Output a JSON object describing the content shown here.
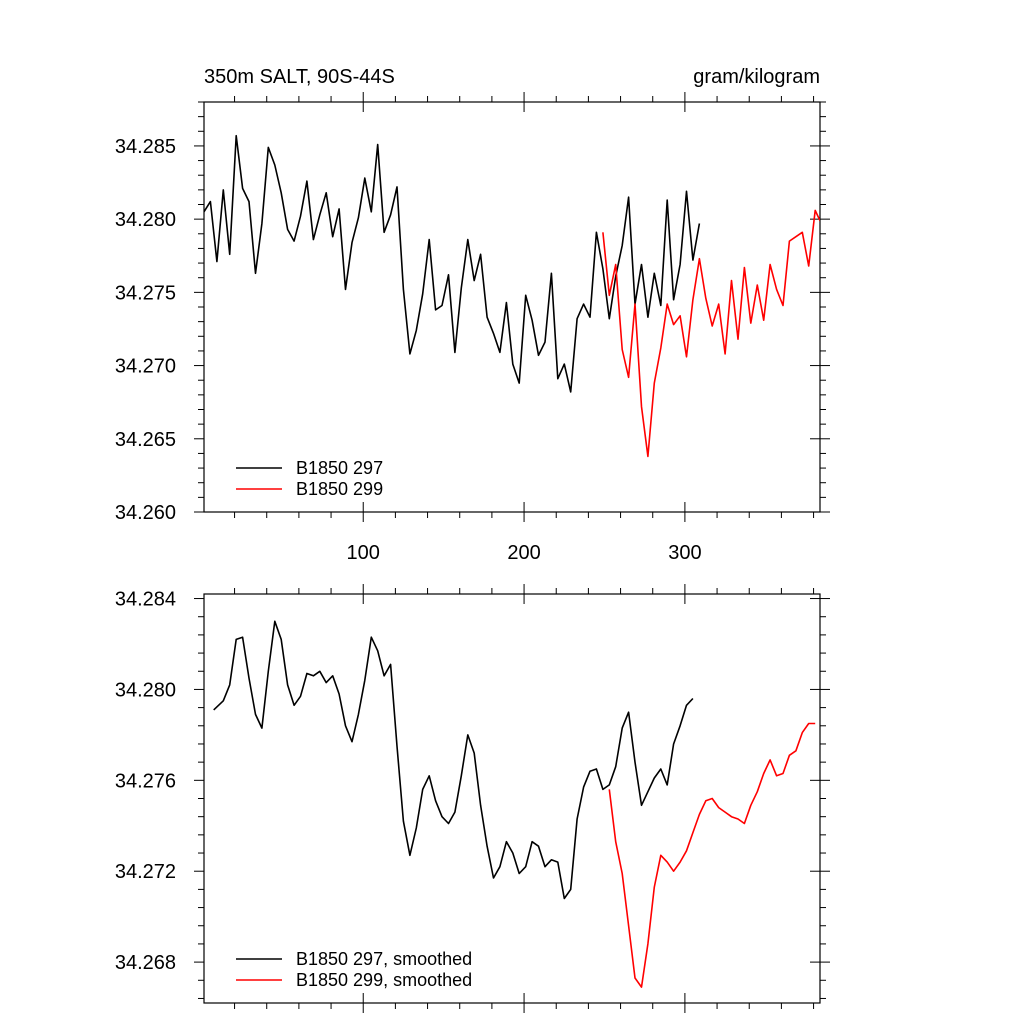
{
  "chart_data": [
    {
      "type": "line",
      "title_left": "350m SALT, 90S-44S",
      "title_right": "gram/kilogram",
      "xlim": [
        1,
        384
      ],
      "ylim": [
        34.26,
        34.288
      ],
      "xticks": [
        100,
        200,
        300
      ],
      "xtick_labels": [
        "100",
        "200",
        "300"
      ],
      "yticks": [
        34.26,
        34.265,
        34.27,
        34.275,
        34.28,
        34.285
      ],
      "ytick_labels": [
        "34.260",
        "34.265",
        "34.270",
        "34.275",
        "34.280",
        "34.285"
      ],
      "series": [
        {
          "name": "B1850 297",
          "color": "#000000",
          "x": [
            1,
            5,
            9,
            13,
            17,
            21,
            25,
            29,
            33,
            37,
            41,
            45,
            49,
            53,
            57,
            61,
            65,
            69,
            73,
            77,
            81,
            85,
            89,
            93,
            97,
            101,
            105,
            109,
            113,
            117,
            121,
            125,
            129,
            133,
            137,
            141,
            145,
            149,
            153,
            157,
            161,
            165,
            169,
            173,
            177,
            181,
            185,
            189,
            193,
            197,
            201,
            205,
            209,
            213,
            217,
            221,
            225,
            229,
            233,
            237,
            241,
            245,
            249,
            253,
            257,
            261,
            265,
            269,
            273,
            277,
            281,
            285,
            289,
            293,
            297,
            301,
            305,
            309
          ],
          "values": [
            34.2805,
            34.2812,
            34.2771,
            34.282,
            34.2776,
            34.2857,
            34.2821,
            34.2812,
            34.2763,
            34.2797,
            34.2849,
            34.2837,
            34.2818,
            34.2793,
            34.2785,
            34.2802,
            34.2826,
            34.2786,
            34.2803,
            34.2818,
            34.2788,
            34.2807,
            34.2752,
            34.2784,
            34.2801,
            34.2828,
            34.2805,
            34.2851,
            34.2791,
            34.2803,
            34.2822,
            34.2752,
            34.2708,
            34.2724,
            34.2749,
            34.2786,
            34.2738,
            34.2741,
            34.2762,
            34.2709,
            34.2753,
            34.2786,
            34.2758,
            34.2776,
            34.2733,
            34.2722,
            34.2709,
            34.2743,
            34.2701,
            34.2688,
            34.2748,
            34.2731,
            34.2707,
            34.2716,
            34.2763,
            34.2691,
            34.2701,
            34.2682,
            34.2732,
            34.2742,
            34.2733,
            34.2791,
            34.2766,
            34.2732,
            34.2761,
            34.2782,
            34.2815,
            34.2742,
            34.2769,
            34.2733,
            34.2763,
            34.2741,
            34.2813,
            34.2745,
            34.2769,
            34.2819,
            34.2772,
            34.2797
          ]
        },
        {
          "name": "B1850 299",
          "color": "#ff0000",
          "x": [
            249,
            253,
            257,
            261,
            265,
            269,
            273,
            277,
            281,
            285,
            289,
            293,
            297,
            301,
            305,
            309,
            313,
            317,
            321,
            325,
            329,
            333,
            337,
            341,
            345,
            349,
            353,
            357,
            361,
            365,
            369,
            373,
            377,
            381,
            384
          ],
          "values": [
            34.2791,
            34.2748,
            34.2769,
            34.2711,
            34.2692,
            34.2742,
            34.2672,
            34.2638,
            34.2688,
            34.2712,
            34.2742,
            34.2728,
            34.2734,
            34.2706,
            34.2745,
            34.2773,
            34.2746,
            34.2727,
            34.2742,
            34.2708,
            34.2758,
            34.2718,
            34.2767,
            34.2729,
            34.2755,
            34.2731,
            34.2769,
            34.2752,
            34.2741,
            34.2785,
            34.2788,
            34.2791,
            34.2768,
            34.2806,
            34.2799
          ]
        }
      ],
      "legend": [
        "B1850 297",
        "B1850 299"
      ],
      "legend_position": "bottom-left"
    },
    {
      "type": "line",
      "xlim": [
        1,
        384
      ],
      "ylim": [
        34.2662,
        34.2842
      ],
      "xticks": [
        100,
        200,
        300
      ],
      "yticks": [
        34.268,
        34.272,
        34.276,
        34.28,
        34.284
      ],
      "ytick_labels": [
        "34.268",
        "34.272",
        "34.276",
        "34.280",
        "34.284"
      ],
      "series": [
        {
          "name": "B1850 297, smoothed",
          "color": "#000000",
          "x": [
            7,
            13,
            17,
            21,
            25,
            29,
            33,
            37,
            41,
            45,
            49,
            53,
            57,
            61,
            65,
            69,
            73,
            77,
            81,
            85,
            89,
            93,
            97,
            101,
            105,
            109,
            113,
            117,
            121,
            125,
            129,
            133,
            137,
            141,
            145,
            149,
            153,
            157,
            161,
            165,
            169,
            173,
            177,
            181,
            185,
            189,
            193,
            197,
            201,
            205,
            209,
            213,
            217,
            221,
            225,
            229,
            233,
            237,
            241,
            245,
            249,
            253,
            257,
            261,
            265,
            269,
            273,
            277,
            281,
            285,
            289,
            293,
            297,
            301,
            305
          ],
          "values": [
            34.2791,
            34.2795,
            34.2802,
            34.2822,
            34.2823,
            34.2805,
            34.2789,
            34.2783,
            34.2808,
            34.283,
            34.2822,
            34.2802,
            34.2793,
            34.2797,
            34.2807,
            34.2806,
            34.2808,
            34.2803,
            34.2806,
            34.2798,
            34.2784,
            34.2777,
            34.2789,
            34.2804,
            34.2823,
            34.2817,
            34.2806,
            34.2811,
            34.2775,
            34.2742,
            34.2727,
            34.2739,
            34.2756,
            34.2762,
            34.2751,
            34.2744,
            34.2741,
            34.2746,
            34.2762,
            34.278,
            34.2772,
            34.2749,
            34.2731,
            34.2717,
            34.2722,
            34.2733,
            34.2728,
            34.2719,
            34.2722,
            34.2733,
            34.2731,
            34.2722,
            34.2725,
            34.2724,
            34.2708,
            34.2712,
            34.2743,
            34.2757,
            34.2764,
            34.2765,
            34.2756,
            34.2758,
            34.2766,
            34.2783,
            34.279,
            34.2768,
            34.2749,
            34.2755,
            34.2761,
            34.2765,
            34.2758,
            34.2776,
            34.2784,
            34.2793,
            34.2796
          ]
        },
        {
          "name": "B1850 299, smoothed",
          "color": "#ff0000",
          "x": [
            253,
            257,
            261,
            265,
            269,
            273,
            277,
            281,
            285,
            289,
            293,
            297,
            301,
            305,
            309,
            313,
            317,
            321,
            325,
            329,
            333,
            337,
            341,
            345,
            349,
            353,
            357,
            361,
            365,
            369,
            373,
            377,
            381
          ],
          "values": [
            34.2756,
            34.2733,
            34.2719,
            34.2696,
            34.2673,
            34.2669,
            34.2688,
            34.2713,
            34.2727,
            34.2724,
            34.272,
            34.2724,
            34.2729,
            34.2737,
            34.2745,
            34.2751,
            34.2752,
            34.2748,
            34.2746,
            34.2744,
            34.2743,
            34.2741,
            34.2749,
            34.2755,
            34.2763,
            34.2769,
            34.2762,
            34.2763,
            34.2771,
            34.2773,
            34.2781,
            34.2785,
            34.2785
          ]
        }
      ],
      "legend": [
        "B1850 297, smoothed",
        "B1850 299, smoothed"
      ],
      "legend_position": "bottom-left"
    }
  ]
}
